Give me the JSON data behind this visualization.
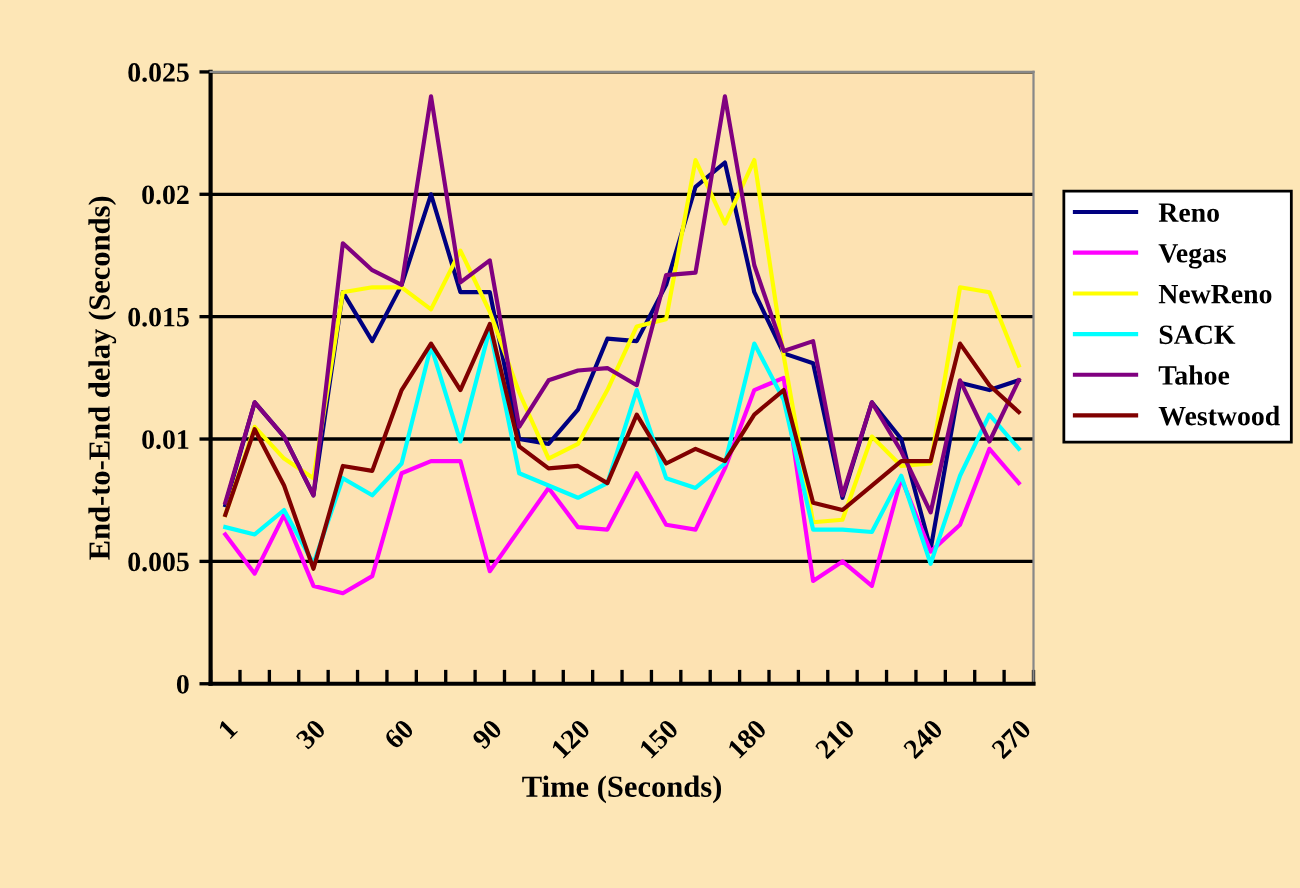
{
  "chart_data": {
    "type": "line",
    "xlabel": "Time (Seconds)",
    "ylabel": "End-to-End delay (Seconds)",
    "categories": [
      "1",
      null,
      null,
      "30",
      null,
      null,
      "60",
      null,
      null,
      "90",
      null,
      null,
      "120",
      null,
      null,
      "150",
      null,
      null,
      "180",
      null,
      null,
      "210",
      null,
      null,
      "240",
      null,
      null,
      "270"
    ],
    "series": [
      {
        "name": "Reno",
        "color": "#000080",
        "values": [
          0.0073,
          0.0115,
          0.0101,
          0.0077,
          0.016,
          0.014,
          0.0163,
          0.02,
          0.016,
          0.016,
          0.01,
          0.0098,
          0.0112,
          0.0141,
          0.014,
          0.0163,
          0.0203,
          0.0213,
          0.016,
          0.0135,
          0.0131,
          0.0076,
          0.0115,
          0.01,
          0.0055,
          0.0123,
          0.012,
          0.0124
        ]
      },
      {
        "name": "Vegas",
        "color": "#ff00ff",
        "values": [
          0.0061,
          0.0045,
          0.0069,
          0.004,
          0.0037,
          0.0044,
          0.0086,
          0.0091,
          0.0091,
          0.0046,
          0.0063,
          0.008,
          0.0064,
          0.0063,
          0.0086,
          0.0065,
          0.0063,
          0.0088,
          0.012,
          0.0125,
          0.0042,
          0.005,
          0.004,
          0.0084,
          0.0054,
          0.0065,
          0.0096,
          0.0082
        ]
      },
      {
        "name": "NewReno",
        "color": "#ffff00",
        "values": [
          0.0069,
          0.0105,
          0.0092,
          0.0084,
          0.016,
          0.0162,
          0.0162,
          0.0153,
          0.0177,
          0.0152,
          0.0119,
          0.0092,
          0.0098,
          0.012,
          0.0146,
          0.0149,
          0.0214,
          0.0188,
          0.0214,
          0.0134,
          0.0066,
          0.0067,
          0.0101,
          0.0089,
          0.009,
          0.0162,
          0.016,
          0.013
        ]
      },
      {
        "name": "SACK",
        "color": "#00ffff",
        "values": [
          0.0064,
          0.0061,
          0.0071,
          0.0049,
          0.0084,
          0.0077,
          0.009,
          0.0138,
          0.0099,
          0.0145,
          0.0086,
          0.0081,
          0.0076,
          0.0082,
          0.012,
          0.0084,
          0.008,
          0.009,
          0.0139,
          0.0116,
          0.0063,
          0.0063,
          0.0062,
          0.0085,
          0.0049,
          0.0085,
          0.011,
          0.0096
        ]
      },
      {
        "name": "Tahoe",
        "color": "#800080",
        "values": [
          0.0074,
          0.0115,
          0.0101,
          0.0077,
          0.018,
          0.0169,
          0.0163,
          0.024,
          0.0164,
          0.0173,
          0.0105,
          0.0124,
          0.0128,
          0.0129,
          0.0122,
          0.0167,
          0.0168,
          0.024,
          0.0171,
          0.0136,
          0.014,
          0.0077,
          0.0115,
          0.0095,
          0.007,
          0.0124,
          0.0099,
          0.0124
        ]
      },
      {
        "name": "Westwood",
        "color": "#800000",
        "values": [
          0.0069,
          0.0104,
          0.0081,
          0.0047,
          0.0089,
          0.0087,
          0.012,
          0.0139,
          0.012,
          0.0147,
          0.0097,
          0.0088,
          0.0089,
          0.0082,
          0.011,
          0.009,
          0.0096,
          0.0091,
          0.011,
          0.012,
          0.0074,
          0.0071,
          0.0081,
          0.0091,
          0.0091,
          0.0139,
          0.0122,
          0.0111
        ]
      }
    ],
    "ylim": [
      0,
      0.025
    ],
    "yticks": [
      0,
      0.005,
      0.01,
      0.015,
      0.02,
      0.025
    ],
    "grid": "y",
    "legend": "right",
    "marker": "none",
    "line_style": "solid"
  }
}
